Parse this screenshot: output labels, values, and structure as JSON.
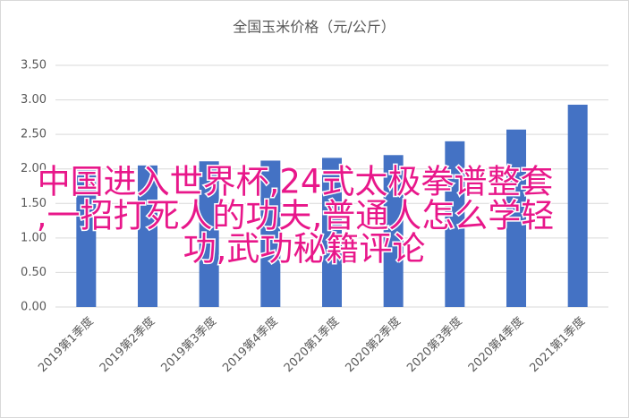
{
  "chart_data": {
    "type": "bar",
    "title": "全国玉米价格（元/公斤）",
    "categories": [
      "2019第1季度",
      "2019第2季度",
      "2019第3季度",
      "2019第4季度",
      "2020第1季度",
      "2020第2季度",
      "2020第3季度",
      "2020第4季度",
      "2021第1季度"
    ],
    "values": [
      2.05,
      2.05,
      2.11,
      2.12,
      2.16,
      2.2,
      2.4,
      2.57,
      2.93
    ],
    "color": "#4472c4",
    "ylim": [
      0,
      3.5
    ],
    "yticks": [
      {
        "value": 0,
        "label": "0.00"
      },
      {
        "value": 0.5,
        "label": "0.50"
      },
      {
        "value": 1,
        "label": "1.00"
      },
      {
        "value": 1.5,
        "label": "1.50"
      },
      {
        "value": 2,
        "label": "2.00"
      },
      {
        "value": 2.5,
        "label": "2.50"
      },
      {
        "value": 3,
        "label": "3.00"
      },
      {
        "value": 3.5,
        "label": "3.50"
      }
    ],
    "grid": true
  },
  "overlay": {
    "lines": [
      "中国进入世界杯,24式太极拳谱整套",
      ",一招打死人的功夫,普通人怎么学轻",
      "功,武功秘籍评论"
    ],
    "color": "#e8178a"
  }
}
